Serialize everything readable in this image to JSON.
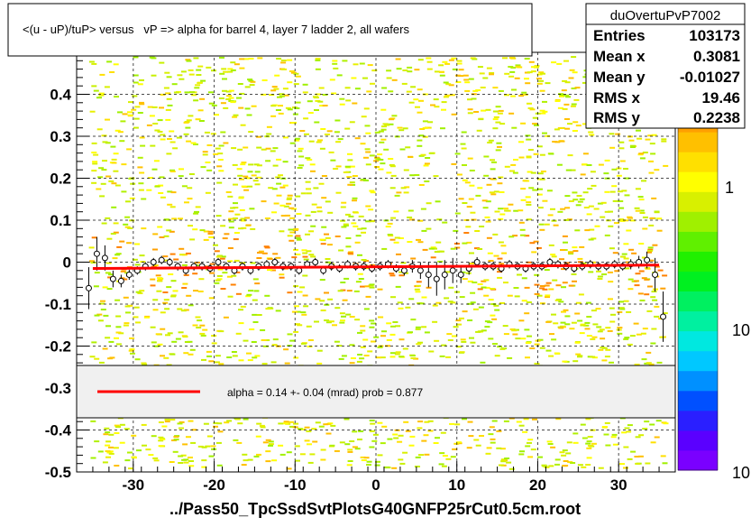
{
  "title": "<(u - uP)/tuP> versus   vP => alpha for barrel 4, layer 7 ladder 2, all wafers",
  "footer": "../Pass50_TpcSsdSvtPlotsG40GNFP25rCut0.5cm.root",
  "stats": {
    "name": "duOvertuPvP7002",
    "rows": [
      {
        "label": "Entries",
        "value": "103173"
      },
      {
        "label": "Mean x",
        "value": "0.3081"
      },
      {
        "label": "Mean y",
        "value": "-0.01027"
      },
      {
        "label": "RMS x",
        "value": "19.46"
      },
      {
        "label": "RMS y",
        "value": "0.2238"
      }
    ]
  },
  "fit_legend": {
    "text": "alpha =    0.14 +-  0.04 (mrad) prob = 0.877",
    "line_color": "#ff0000"
  },
  "palette": {
    "labels": [
      "1",
      "10",
      "10"
    ],
    "colors": [
      "#7a00ff",
      "#5a00ff",
      "#2a1fff",
      "#0050ff",
      "#0090ff",
      "#00c8ff",
      "#00e8e0",
      "#00f0a0",
      "#00f060",
      "#00f020",
      "#20f000",
      "#60f000",
      "#a0f000",
      "#d8f000",
      "#ffff00",
      "#ffe000",
      "#ffc000",
      "#ffa000",
      "#ff6000",
      "#ff2000",
      "#cc0000"
    ]
  },
  "chart_data": {
    "type": "scatter",
    "xlim": [
      -37,
      37
    ],
    "ylim": [
      -0.5,
      0.5
    ],
    "x_ticks": [
      -30,
      -20,
      -10,
      0,
      10,
      20,
      30
    ],
    "y_ticks": [
      -0.5,
      -0.4,
      -0.3,
      -0.2,
      -0.1,
      0,
      0.1,
      0.2,
      0.3,
      0.4
    ],
    "y_tick_labels": [
      "-0.5",
      "-0.4",
      "-0.3",
      "-0.2",
      "-0.1",
      "0",
      "0.1",
      "0.2",
      "0.3",
      "0.4"
    ],
    "grid": true,
    "fit_line": {
      "x": [
        -35,
        35
      ],
      "y": [
        -0.015,
        -0.007
      ],
      "color": "#ff0000"
    },
    "profile": {
      "x": [
        -35.5,
        -34.5,
        -33.5,
        -32.5,
        -31.5,
        -30.5,
        -29.5,
        -28.5,
        -27.5,
        -26.5,
        -25.5,
        -24.5,
        -23.5,
        -22.5,
        -21.5,
        -20.5,
        -19.5,
        -18.5,
        -17.5,
        -16.5,
        -15.5,
        -14.5,
        -13.5,
        -12.5,
        -11.5,
        -10.5,
        -9.5,
        -8.5,
        -7.5,
        -6.5,
        -5.5,
        -4.5,
        -3.5,
        -2.5,
        -1.5,
        -0.5,
        0.5,
        1.5,
        2.5,
        3.5,
        4.5,
        5.5,
        6.5,
        7.5,
        8.5,
        9.5,
        10.5,
        11.5,
        12.5,
        13.5,
        14.5,
        15.5,
        16.5,
        17.5,
        18.5,
        19.5,
        20.5,
        21.5,
        22.5,
        23.5,
        24.5,
        25.5,
        26.5,
        27.5,
        28.5,
        29.5,
        30.5,
        31.5,
        32.5,
        33.5,
        34.5,
        35.5
      ],
      "y": [
        -0.062,
        0.02,
        0.01,
        -0.04,
        -0.045,
        -0.03,
        -0.02,
        -0.01,
        0.0,
        0.005,
        0.0,
        -0.01,
        -0.02,
        -0.01,
        -0.01,
        -0.015,
        0.0,
        -0.01,
        -0.02,
        -0.01,
        -0.02,
        -0.01,
        -0.005,
        0.0,
        -0.01,
        -0.01,
        -0.02,
        -0.005,
        0.0,
        -0.02,
        -0.01,
        -0.015,
        -0.005,
        -0.01,
        -0.01,
        -0.015,
        -0.01,
        -0.005,
        -0.015,
        -0.02,
        -0.01,
        -0.02,
        -0.03,
        -0.04,
        -0.03,
        -0.02,
        -0.03,
        -0.015,
        0.0,
        -0.01,
        -0.01,
        -0.015,
        -0.005,
        -0.01,
        -0.015,
        -0.01,
        -0.01,
        0.0,
        -0.005,
        -0.01,
        -0.015,
        -0.01,
        -0.005,
        -0.01,
        -0.01,
        -0.005,
        -0.01,
        -0.005,
        0.0,
        0.005,
        -0.03,
        -0.13
      ],
      "err": [
        0.05,
        0.04,
        0.03,
        0.02,
        0.015,
        0.012,
        0.01,
        0.01,
        0.01,
        0.01,
        0.01,
        0.01,
        0.01,
        0.01,
        0.01,
        0.01,
        0.01,
        0.01,
        0.01,
        0.01,
        0.01,
        0.01,
        0.01,
        0.01,
        0.01,
        0.01,
        0.01,
        0.01,
        0.01,
        0.01,
        0.01,
        0.01,
        0.01,
        0.01,
        0.01,
        0.01,
        0.01,
        0.01,
        0.01,
        0.012,
        0.015,
        0.02,
        0.03,
        0.04,
        0.035,
        0.03,
        0.02,
        0.015,
        0.012,
        0.01,
        0.01,
        0.01,
        0.01,
        0.01,
        0.01,
        0.01,
        0.01,
        0.01,
        0.01,
        0.01,
        0.01,
        0.01,
        0.01,
        0.01,
        0.01,
        0.01,
        0.01,
        0.012,
        0.015,
        0.02,
        0.04,
        0.06
      ]
    }
  }
}
